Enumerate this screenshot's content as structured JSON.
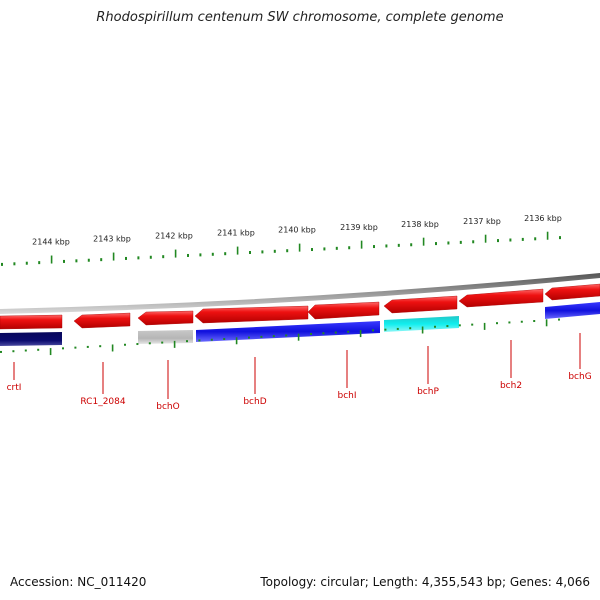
{
  "title": "Rhodospirillum centenum SW chromosome, complete genome",
  "footer": {
    "accession": "Accession: NC_011420",
    "summary": "Topology: circular; Length: 4,355,543 bp; Genes: 4,066"
  },
  "kbp_labels": [
    "2144 kbp",
    "2143 kbp",
    "2142 kbp",
    "2141 kbp",
    "2140 kbp",
    "2139 kbp",
    "2138 kbp",
    "2137 kbp",
    "2136 kbp"
  ],
  "gene_labels": [
    "crtI",
    "RC1_2084",
    "bchO",
    "bchD",
    "bchI",
    "bchP",
    "bch2",
    "bchG"
  ],
  "colors": {
    "forward_strand": "#ee1111",
    "reverse_navy": "#0a0a6e",
    "reverse_gray": "#bbbbbb",
    "reverse_blue": "#1010dd",
    "reverse_cyan": "#11eeee",
    "backbone": "#888888",
    "ticks": "#228822",
    "gene_label": "#cc0000"
  }
}
